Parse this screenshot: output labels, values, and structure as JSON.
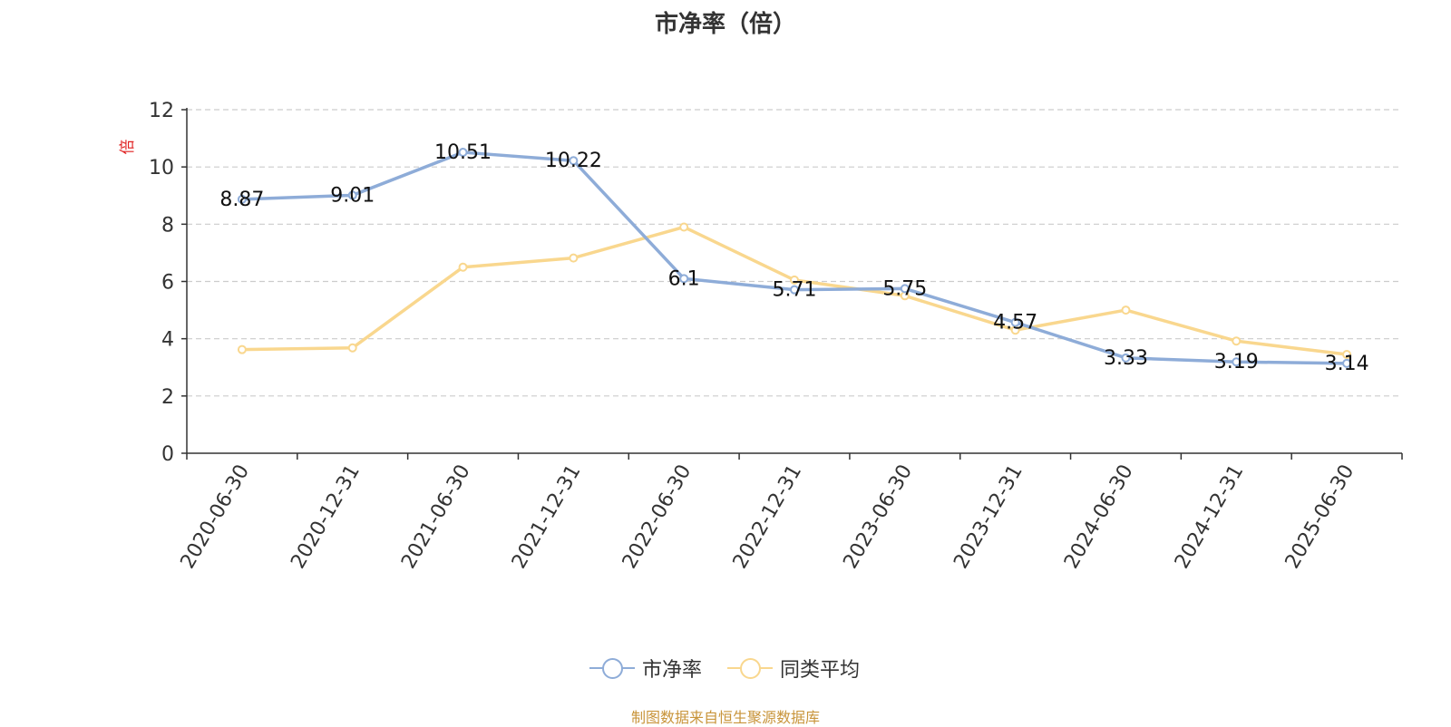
{
  "title": "市净率（倍）",
  "source_note": "制图数据来自恒生聚源数据库",
  "chart_data": {
    "type": "line",
    "title": "市净率（倍）",
    "ylabel": "倍",
    "xlabel": "",
    "categories": [
      "2020-06-30",
      "2020-12-31",
      "2021-06-30",
      "2021-12-31",
      "2022-06-30",
      "2022-12-31",
      "2023-06-30",
      "2023-12-31",
      "2024-06-30",
      "2024-12-31",
      "2025-06-30"
    ],
    "yticks": [
      "0",
      "2",
      "4",
      "6",
      "8",
      "10",
      "12"
    ],
    "ylim": [
      0,
      12
    ],
    "grid": "horizontal dashed",
    "legend_position": "bottom-center",
    "series": [
      {
        "name": "市净率",
        "color": "#8eacd8",
        "values": [
          8.87,
          9.01,
          10.51,
          10.22,
          6.1,
          5.71,
          5.75,
          4.57,
          3.33,
          3.19,
          3.14
        ],
        "labels": [
          "8.87",
          "9.01",
          "10.51",
          "10.22",
          "6.1",
          "5.71",
          "5.75",
          "4.57",
          "3.33",
          "3.19",
          "3.14"
        ]
      },
      {
        "name": "同类平均",
        "color": "#f9d78e",
        "values": [
          3.62,
          3.68,
          6.5,
          6.82,
          7.9,
          6.05,
          5.5,
          4.3,
          5.0,
          3.92,
          3.45
        ]
      }
    ]
  }
}
